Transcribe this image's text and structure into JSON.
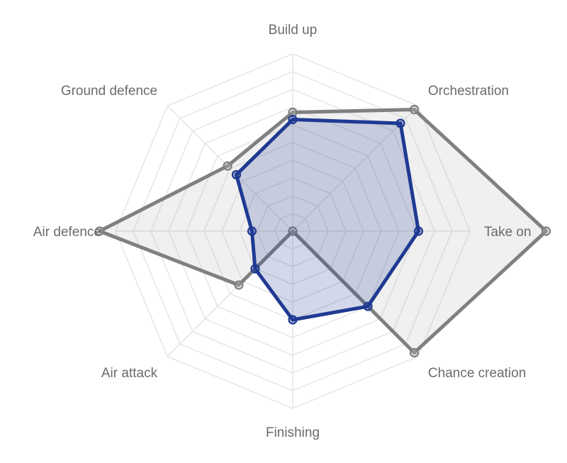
{
  "chart_data": {
    "type": "radar",
    "axes": [
      "Build up",
      "Orchestration",
      "Take on",
      "Chance creation",
      "Finishing",
      "Air attack",
      "Air defence",
      "Ground defence"
    ],
    "rlim": [
      0,
      100
    ],
    "grid": true,
    "grid_levels": 10,
    "series": [
      {
        "values": [
          63,
          86,
          71,
          60,
          50,
          30,
          23,
          45
        ],
        "color": "#1f3a93",
        "fill": "#1f3a93",
        "fill_opacity": 0.2
      },
      {
        "values": [
          67,
          97,
          143,
          97,
          0,
          43,
          109,
          52
        ],
        "color": "#808080",
        "fill": "#b3b3b3",
        "fill_opacity": 0.2
      }
    ]
  }
}
